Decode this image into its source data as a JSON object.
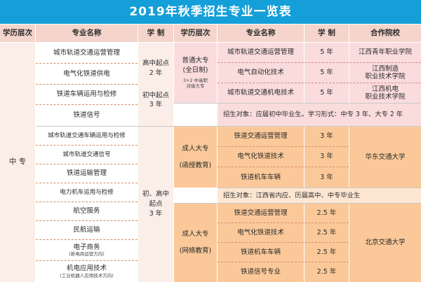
{
  "title": "2019年秋季招生专业一览表",
  "header": {
    "level": "学历层次",
    "major": "专业名称",
    "duration": "学 制",
    "level2": "学历层次",
    "major2": "专业名称",
    "duration2": "学 制",
    "partner": "合作院校"
  },
  "left": {
    "level_value": "中 专",
    "group1": {
      "majors": [
        "城市轨道交通运营管理",
        "电气化铁道供电",
        "铁道车辆运用与检修",
        "铁道信号"
      ],
      "duration_a": [
        "高中起点",
        "2 年"
      ],
      "duration_b": [
        "初中起点",
        "3 年"
      ]
    },
    "group2": {
      "majors": [
        "城市轨道交通车辆运用与检修",
        "城市轨道交通信号",
        "铁道运输管理",
        "电力机车运用与检修",
        "航空服务",
        "民航运输"
      ],
      "major_ecommerce": "电子商务",
      "major_ecommerce_note": "(新电商运营方向)",
      "major_mech": "机电应用技术",
      "major_mech_note": "(工业机器人应用技术方向)",
      "duration": [
        "初、高中",
        "起点",
        "3 年"
      ]
    }
  },
  "right": {
    "block1": {
      "level": [
        "普通大专",
        "(全日制)"
      ],
      "level_note": [
        "3+2 中高职",
        "对接大专"
      ],
      "rows": [
        {
          "major": "城市轨道交通运营管理",
          "duration": "5 年",
          "partner": [
            "江西青年职业学院"
          ]
        },
        {
          "major": "电气自动化技术",
          "duration": "5 年",
          "partner": [
            "江西制造",
            "职业技术学院"
          ]
        },
        {
          "major": "城市轨道交通机电技术",
          "duration": "5 年",
          "partner": [
            "江西机电",
            "职业技术学院"
          ]
        }
      ],
      "note": "招生对象：应届初中毕业生。学习形式：中专 3 年、大专 2 年"
    },
    "block2": {
      "level": [
        "成人大专",
        "(函授教育)"
      ],
      "rows": [
        {
          "major": "铁道交通运营管理",
          "duration": "3 年"
        },
        {
          "major": "电气化铁道技术",
          "duration": "3 年"
        },
        {
          "major": "铁道机车车辆",
          "duration": "3 年"
        }
      ],
      "partner": "华东交通大学",
      "note": "招生对象：江西省内应、历届高中、中专毕业生"
    },
    "block3": {
      "level": [
        "成人大专",
        "(网络教育)"
      ],
      "rows": [
        {
          "major": "铁道交通运营管理",
          "duration": "2.5 年"
        },
        {
          "major": "电气化铁道技术",
          "duration": "2.5 年"
        },
        {
          "major": "铁道机车车辆",
          "duration": "2.5 年"
        },
        {
          "major": "铁道信号专业",
          "duration": "2.5 年"
        }
      ],
      "partner": "北京交通大学"
    }
  },
  "colors": {
    "title_bg": "#149fd8",
    "header_bg": "#f4d4cb",
    "pink_block": "#fadcdd",
    "orange_block": "#fbc999",
    "light_orange": "#fde7d2"
  }
}
